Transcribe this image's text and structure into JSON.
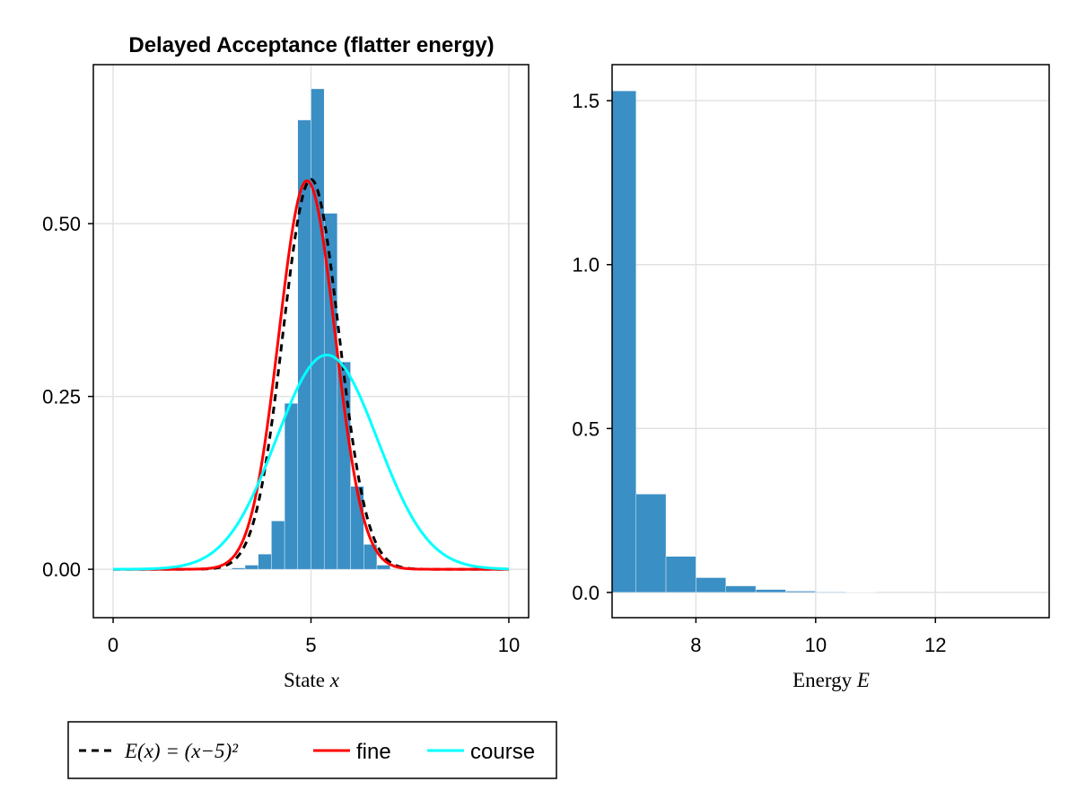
{
  "chart_data": [
    {
      "type": "bar",
      "title": "Delayed Acceptance (flatter energy)",
      "xlabel_text": "State ",
      "xlabel_var": "x",
      "ylabel": "",
      "xlim": [
        -0.5,
        10.5
      ],
      "ylim": [
        -0.07,
        0.73
      ],
      "xticks": [
        0,
        5,
        10
      ],
      "xtick_labels": [
        "0",
        "5",
        "10"
      ],
      "yticks": [
        0,
        0.25,
        0.5
      ],
      "ytick_labels": [
        "0.00",
        "0.25",
        "0.50"
      ],
      "grid": true,
      "histogram": {
        "bin_width": 0.333,
        "bins": [
          {
            "x0": 3.0,
            "y": 0.002
          },
          {
            "x0": 3.333,
            "y": 0.006
          },
          {
            "x0": 3.667,
            "y": 0.022
          },
          {
            "x0": 4.0,
            "y": 0.07
          },
          {
            "x0": 4.333,
            "y": 0.24
          },
          {
            "x0": 4.667,
            "y": 0.65
          },
          {
            "x0": 5.0,
            "y": 0.695
          },
          {
            "x0": 5.333,
            "y": 0.515
          },
          {
            "x0": 5.667,
            "y": 0.3
          },
          {
            "x0": 6.0,
            "y": 0.12
          },
          {
            "x0": 6.333,
            "y": 0.036
          },
          {
            "x0": 6.667,
            "y": 0.006
          }
        ]
      },
      "series": [
        {
          "name": "$E(x) = (x-5)^2$",
          "style": "dashed",
          "color": "#000000",
          "shape": "gaussian",
          "mu": 5.0,
          "sigma": 0.707,
          "peak": 0.564
        },
        {
          "name": "fine",
          "style": "solid",
          "color": "#ff0000",
          "shape": "gaussian",
          "mu": 4.9,
          "sigma": 0.71,
          "peak": 0.562
        },
        {
          "name": "course",
          "style": "solid",
          "color": "#00ffff",
          "shape": "gaussian",
          "mu": 5.4,
          "sigma": 1.28,
          "peak": 0.31
        }
      ]
    },
    {
      "type": "bar",
      "title": "",
      "xlabel_text": "Energy ",
      "xlabel_var": "E",
      "ylabel": "",
      "xlim": [
        6.6,
        13.9
      ],
      "ylim": [
        -0.077,
        1.61
      ],
      "xticks": [
        8,
        10,
        12
      ],
      "xtick_labels": [
        "8",
        "10",
        "12"
      ],
      "yticks": [
        0,
        0.5,
        1.0,
        1.5
      ],
      "ytick_labels": [
        "0.0",
        "0.5",
        "1.0",
        "1.5"
      ],
      "grid": true,
      "histogram": {
        "bin_width": 0.5,
        "bins": [
          {
            "x0": 6.5,
            "y": 1.53
          },
          {
            "x0": 7.0,
            "y": 0.3
          },
          {
            "x0": 7.5,
            "y": 0.11
          },
          {
            "x0": 8.0,
            "y": 0.045
          },
          {
            "x0": 8.5,
            "y": 0.02
          },
          {
            "x0": 9.0,
            "y": 0.009
          },
          {
            "x0": 9.5,
            "y": 0.004
          },
          {
            "x0": 10.0,
            "y": 0.002
          },
          {
            "x0": 10.5,
            "y": 0.001
          }
        ]
      }
    }
  ],
  "legend": {
    "placement": "bottom-left",
    "items": [
      {
        "label": "E(x) = (x−5)²",
        "style": "dashed",
        "color": "#000000"
      },
      {
        "label": "fine",
        "style": "solid",
        "color": "#ff0000"
      },
      {
        "label": "course",
        "style": "solid",
        "color": "#00ffff"
      }
    ]
  },
  "colors": {
    "histogram": "#3a8fc4",
    "grid": "#e2e2e2"
  }
}
